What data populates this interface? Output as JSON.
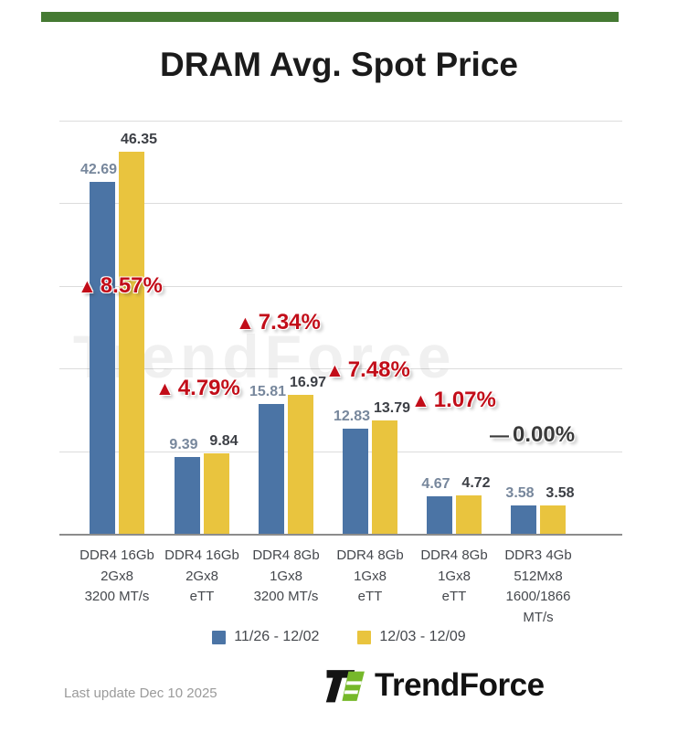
{
  "page": {
    "footer": {
      "last_update": "Last update Dec 10 2025",
      "brand": "TrendForce"
    },
    "watermark": "TrendForce",
    "colors": {
      "accent_green": "#457a33",
      "logo_green": "#76b82a",
      "bar_blue": "#4b74a5",
      "bar_yellow": "#e9c43e",
      "change_up": "#c20d19",
      "change_flat": "#3a3a3a",
      "gridline": "#dcdcdc",
      "baseline": "#8c8c8c"
    }
  },
  "chart_data": {
    "type": "bar",
    "title": "DRAM Avg. Spot Price",
    "categories": [
      [
        "DDR4 16Gb",
        "2Gx8",
        "3200 MT/s"
      ],
      [
        "DDR4 16Gb",
        "2Gx8",
        "eTT"
      ],
      [
        "DDR4 8Gb",
        "1Gx8",
        "3200 MT/s"
      ],
      [
        "DDR4 8Gb",
        "1Gx8",
        "eTT"
      ],
      [
        "DDR4 8Gb",
        "1Gx8",
        "eTT"
      ],
      [
        "DDR3 4Gb",
        "512Mx8",
        "1600/1866 MT/s"
      ]
    ],
    "series": [
      {
        "name": "11/26 - 12/02",
        "color": "#4b74a5",
        "label_color": "#77879c",
        "values": [
          42.69,
          9.39,
          15.81,
          12.83,
          4.67,
          3.58
        ]
      },
      {
        "name": "12/03 - 12/09",
        "color": "#e9c43e",
        "label_color": "#3c3f45",
        "values": [
          46.35,
          9.84,
          16.97,
          13.79,
          4.72,
          3.58
        ]
      }
    ],
    "changes": [
      {
        "prefix": "▲",
        "label": "8.57%",
        "direction": "up"
      },
      {
        "prefix": "▲",
        "label": "4.79%",
        "direction": "up"
      },
      {
        "prefix": "▲",
        "label": "7.34%",
        "direction": "up"
      },
      {
        "prefix": "▲",
        "label": "7.48%",
        "direction": "up"
      },
      {
        "prefix": "▲",
        "label": "1.07%",
        "direction": "up"
      },
      {
        "prefix": "—",
        "label": "0.00%",
        "direction": "flat"
      }
    ],
    "ylim": [
      0,
      50
    ],
    "gridline_values": [
      10,
      20,
      30,
      40,
      50
    ],
    "grid": true,
    "legend_position": "bottom",
    "value_labels": true,
    "watermark": "TrendForce"
  }
}
